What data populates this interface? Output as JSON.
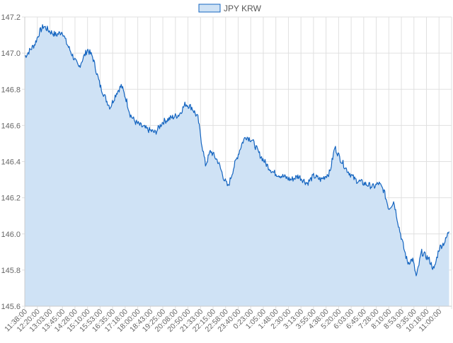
{
  "chart_data": {
    "type": "area",
    "legend": {
      "position": "top-center"
    },
    "grid": true,
    "ylim": [
      145.6,
      147.2
    ],
    "yticks": [
      "147.2",
      "147.0",
      "146.8",
      "146.6",
      "146.4",
      "146.2",
      "146.0",
      "145.8",
      "145.6"
    ],
    "x_tick_labels": [
      "11:38:00",
      "12:20:00",
      "13:03:00",
      "13:45:00",
      "14:28:00",
      "15:10:00",
      "15:53:00",
      "16:35:00",
      "17:18:00",
      "18:00:00",
      "18:43:00",
      "19:25:00",
      "20:08:00",
      "20:50:00",
      "21:33:00",
      "22:15:00",
      "22:58:00",
      "23:40:00",
      "0:23:00",
      "1:05:00",
      "1:48:00",
      "2:30:00",
      "3:13:00",
      "3:55:00",
      "4:38:00",
      "5:20:00",
      "6:03:00",
      "6:45:00",
      "7:28:00",
      "8:10:00",
      "8:53:00",
      "9:35:00",
      "10:18:00",
      "11:00:00"
    ],
    "colors": {
      "line": "#1565c0",
      "fill": "#cfe2f5",
      "grid": "#e0e0e0"
    },
    "series": [
      {
        "name": "JPY KRW",
        "keypoints": [
          [
            0,
            146.98
          ],
          [
            0.8,
            147.05
          ],
          [
            1.2,
            147.12
          ],
          [
            1.5,
            147.15
          ],
          [
            2,
            147.12
          ],
          [
            2.5,
            147.1
          ],
          [
            3,
            147.12
          ],
          [
            3.3,
            147.06
          ],
          [
            4,
            146.96
          ],
          [
            4.3,
            146.92
          ],
          [
            4.7,
            146.98
          ],
          [
            5,
            147.02
          ],
          [
            5.4,
            146.98
          ],
          [
            6,
            146.82
          ],
          [
            6.5,
            146.74
          ],
          [
            6.8,
            146.7
          ],
          [
            7.3,
            146.78
          ],
          [
            7.7,
            146.82
          ],
          [
            8.1,
            146.74
          ],
          [
            8.4,
            146.66
          ],
          [
            8.8,
            146.62
          ],
          [
            9.2,
            146.6
          ],
          [
            9.7,
            146.58
          ],
          [
            10.4,
            146.56
          ],
          [
            11,
            146.62
          ],
          [
            11.6,
            146.64
          ],
          [
            12.3,
            146.66
          ],
          [
            12.8,
            146.72
          ],
          [
            13.3,
            146.7
          ],
          [
            13.8,
            146.64
          ],
          [
            14.1,
            146.5
          ],
          [
            14.4,
            146.38
          ],
          [
            14.8,
            146.46
          ],
          [
            15.4,
            146.4
          ],
          [
            15.9,
            146.3
          ],
          [
            16.2,
            146.26
          ],
          [
            16.7,
            146.38
          ],
          [
            17.3,
            146.5
          ],
          [
            17.6,
            146.54
          ],
          [
            18.1,
            146.52
          ],
          [
            18.7,
            146.44
          ],
          [
            19.3,
            146.38
          ],
          [
            19.8,
            146.34
          ],
          [
            20.5,
            146.32
          ],
          [
            21.2,
            146.3
          ],
          [
            21.8,
            146.32
          ],
          [
            22.5,
            146.28
          ],
          [
            23,
            146.32
          ],
          [
            23.6,
            146.3
          ],
          [
            24.3,
            146.34
          ],
          [
            24.7,
            146.48
          ],
          [
            25.1,
            146.42
          ],
          [
            25.6,
            146.36
          ],
          [
            26.3,
            146.3
          ],
          [
            27,
            146.28
          ],
          [
            27.8,
            146.26
          ],
          [
            28.2,
            146.28
          ],
          [
            28.6,
            146.24
          ],
          [
            29,
            146.14
          ],
          [
            29.4,
            146.18
          ],
          [
            29.8,
            146.04
          ],
          [
            30.2,
            145.92
          ],
          [
            30.5,
            145.84
          ],
          [
            30.9,
            145.86
          ],
          [
            31.2,
            145.76
          ],
          [
            31.6,
            145.9
          ],
          [
            32.2,
            145.86
          ],
          [
            32.6,
            145.8
          ],
          [
            33,
            145.92
          ],
          [
            33.5,
            145.96
          ],
          [
            33.8,
            146.02
          ]
        ]
      }
    ]
  }
}
